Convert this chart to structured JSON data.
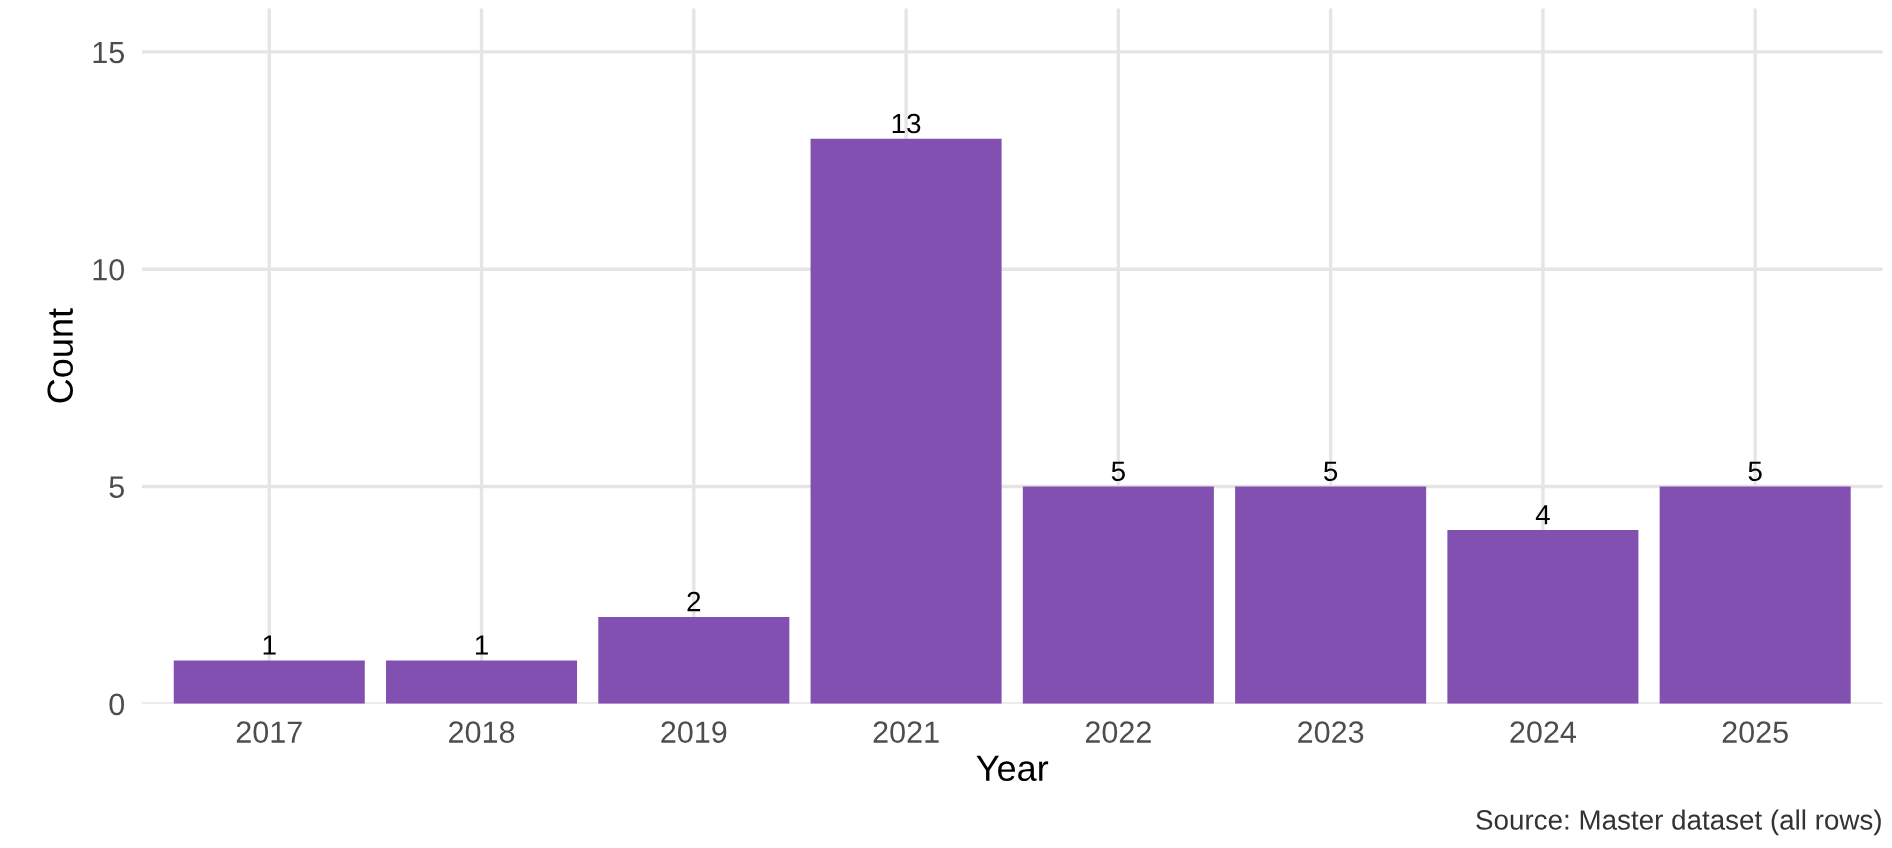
{
  "chart_data": {
    "type": "bar",
    "xlabel": "Year",
    "ylabel": "Count",
    "categories": [
      "2017",
      "2018",
      "2019",
      "2021",
      "2022",
      "2023",
      "2024",
      "2025"
    ],
    "values": [
      1,
      1,
      2,
      13,
      5,
      5,
      4,
      5
    ],
    "color": "#8250b0",
    "ylim": [
      0,
      16
    ],
    "yticks": [
      0,
      5,
      10,
      15
    ],
    "grid": true,
    "data_labels": true,
    "annotations": [
      "Source: Master dataset (all rows)"
    ]
  }
}
